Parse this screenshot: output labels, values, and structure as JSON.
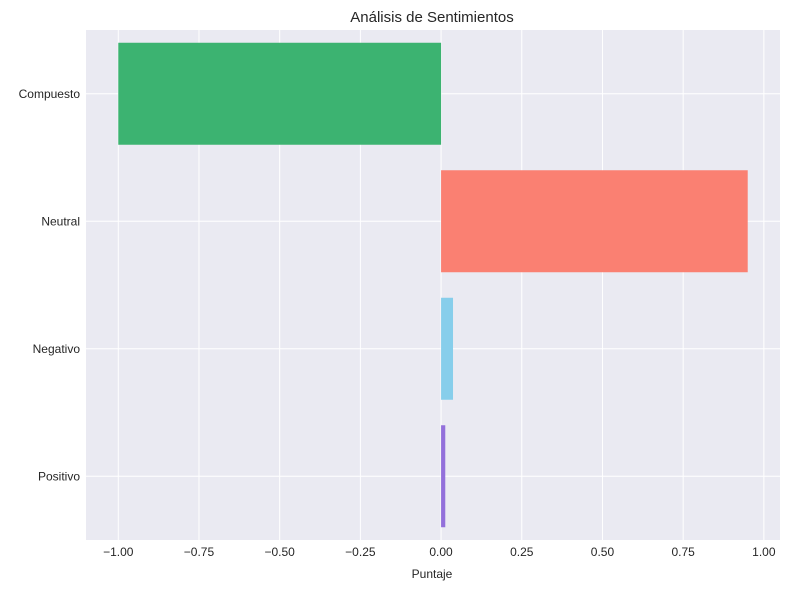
{
  "chart_data": {
    "type": "bar",
    "orientation": "horizontal",
    "title": "Análisis de Sentimientos",
    "xlabel": "Puntaje",
    "ylabel": "",
    "categories": [
      "Positivo",
      "Negativo",
      "Neutral",
      "Compuesto"
    ],
    "values": [
      0.013,
      0.037,
      0.95,
      -1.0
    ],
    "colors": [
      "#9370DB",
      "#87CEEB",
      "#FA8072",
      "#3CB371"
    ],
    "xlim": [
      -1.1,
      1.05
    ],
    "xticks": [
      -1.0,
      -0.75,
      -0.5,
      -0.25,
      0.0,
      0.25,
      0.5,
      0.75,
      1.0
    ],
    "xtick_labels": [
      "−1.00",
      "−0.75",
      "−0.50",
      "−0.25",
      "0.00",
      "0.25",
      "0.50",
      "0.75",
      "1.00"
    ],
    "grid": true,
    "background": "#EAEAF2"
  }
}
